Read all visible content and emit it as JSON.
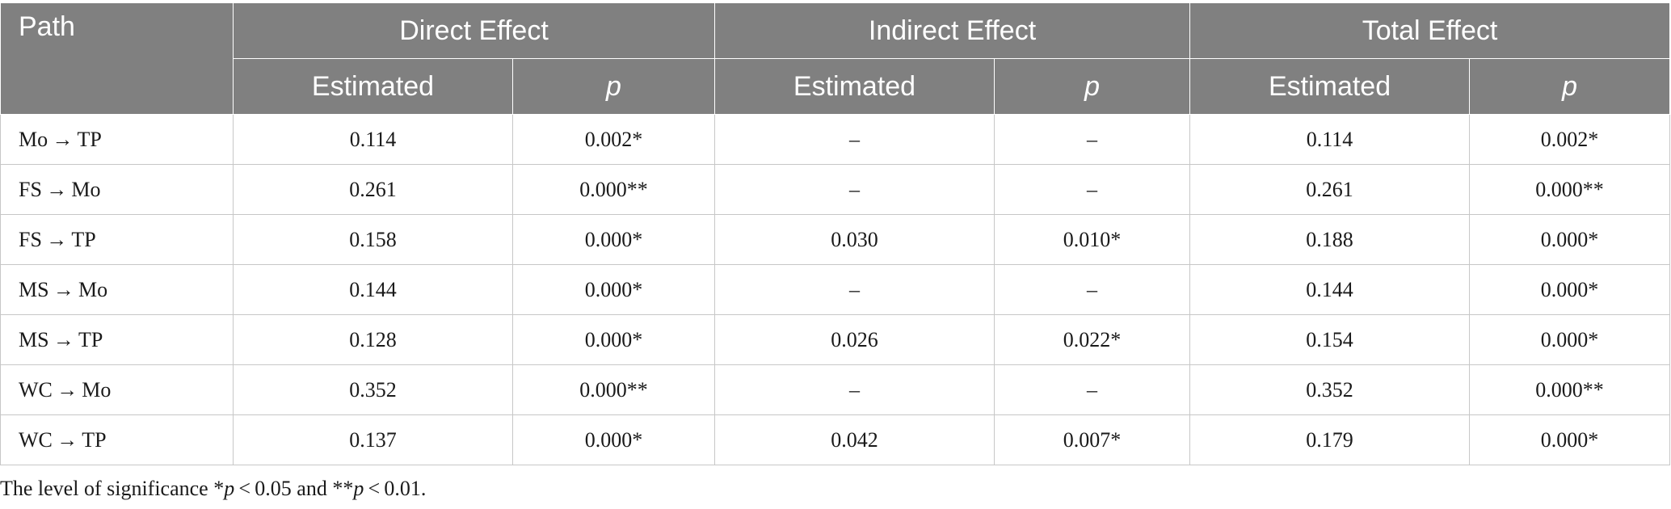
{
  "table": {
    "header": {
      "path": "Path",
      "groups": [
        "Direct Effect",
        "Indirect Effect",
        "Total Effect"
      ],
      "sub": [
        "Estimated",
        "p",
        "Estimated",
        "p",
        "Estimated",
        "p"
      ]
    },
    "rows": [
      [
        "Mo → TP",
        "0.114",
        "0.002*",
        "–",
        "–",
        "0.114",
        "0.002*"
      ],
      [
        "FS → Mo",
        "0.261",
        "0.000**",
        "–",
        "–",
        "0.261",
        "0.000**"
      ],
      [
        "FS → TP",
        "0.158",
        "0.000*",
        "0.030",
        "0.010*",
        "0.188",
        "0.000*"
      ],
      [
        "MS → Mo",
        "0.144",
        "0.000*",
        "–",
        "–",
        "0.144",
        "0.000*"
      ],
      [
        "MS → TP",
        "0.128",
        "0.000*",
        "0.026",
        "0.022*",
        "0.154",
        "0.000*"
      ],
      [
        "WC → Mo",
        "0.352",
        "0.000**",
        "–",
        "–",
        "0.352",
        "0.000**"
      ],
      [
        "WC → TP",
        "0.137",
        "0.000*",
        "0.042",
        "0.007*",
        "0.179",
        "0.000*"
      ]
    ]
  },
  "note": {
    "prefix": "The level of significance *",
    "p1": "p",
    "mid": " < 0.05 and **",
    "p2": "p",
    "suffix": " < 0.01."
  }
}
